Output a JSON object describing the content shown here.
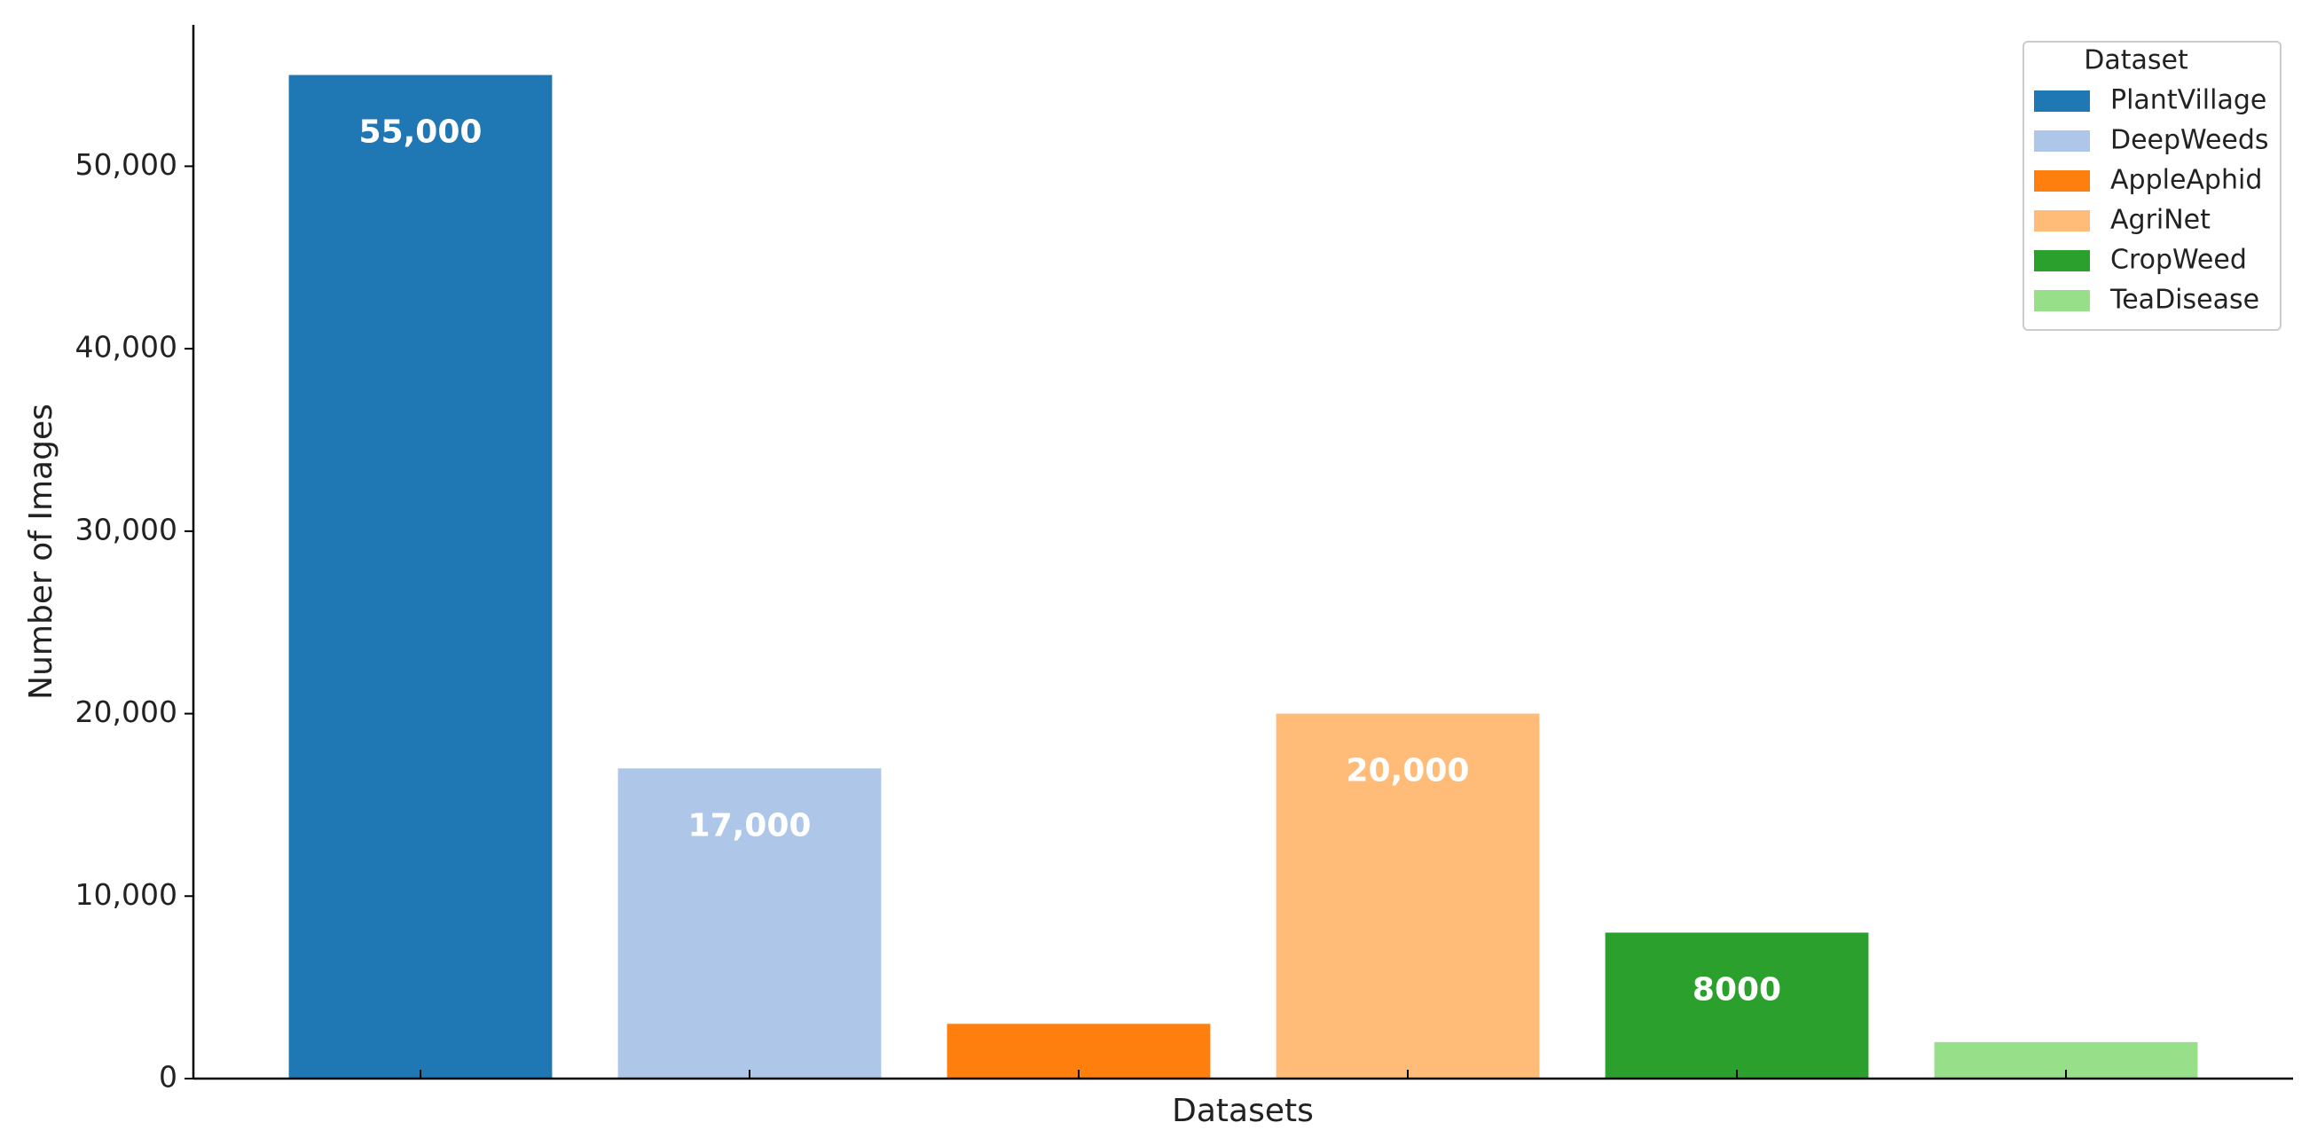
{
  "chart_data": {
    "type": "bar",
    "x_label": "Datasets",
    "y_label": "Number of Images",
    "categories": [
      null,
      null,
      null,
      null,
      null,
      null
    ],
    "series": [
      {
        "name": "PlantVillage",
        "color": "#1f77b4",
        "values": [
          55000,
          null,
          null,
          null,
          null,
          null
        ],
        "value_labels": [
          "55,000",
          null,
          null,
          null,
          null,
          null
        ]
      },
      {
        "name": "DeepWeeds",
        "color": "#aec7e8",
        "values": [
          null,
          17000,
          null,
          null,
          null,
          null
        ],
        "value_labels": [
          null,
          "17,000",
          null,
          null,
          null,
          null
        ]
      },
      {
        "name": "AppleAphid",
        "color": "#ff7f0e",
        "values": [
          null,
          null,
          3000,
          null,
          null,
          null
        ]
      },
      {
        "name": "AgriNet",
        "color": "#ffbb78",
        "values": [
          null,
          null,
          null,
          20000,
          null,
          null
        ],
        "value_labels": [
          null,
          null,
          null,
          "20,000",
          null,
          null
        ]
      },
      {
        "name": "CropWeed",
        "color": "#2ca02c",
        "values": [
          null,
          null,
          null,
          null,
          8000,
          null
        ],
        "value_labels": [
          null,
          null,
          null,
          null,
          "8000",
          null
        ]
      },
      {
        "name": "TeaDisease",
        "color": "#98df8a",
        "values": [
          null,
          null,
          null,
          null,
          null,
          2000
        ]
      }
    ],
    "ylim": [
      0,
      57750
    ],
    "yticks": [
      0,
      {
        "value": 10000,
        "label": "10,000"
      },
      {
        "value": 20000,
        "label": "20,000"
      },
      {
        "value": 30000,
        "label": "30,000"
      },
      {
        "value": 40000,
        "label": "40,000"
      },
      {
        "value": 50000,
        "label": "50,000"
      }
    ],
    "grid": false,
    "legend": {
      "title": "Dataset",
      "position": "upper right"
    }
  }
}
